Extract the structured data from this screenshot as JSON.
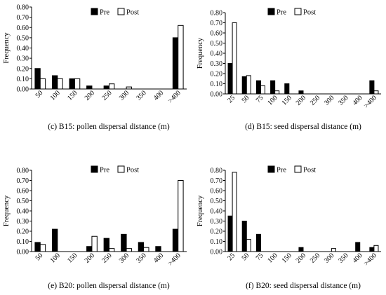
{
  "chart_data": [
    {
      "type": "bar",
      "caption": "(c) B15: pollen dispersal distance (m)",
      "ylabel": "Frequency",
      "ylim": [
        0,
        0.8
      ],
      "yticks": [
        "0.00",
        "0.10",
        "0.20",
        "0.30",
        "0.40",
        "0.50",
        "0.60",
        "0.70",
        "0.80"
      ],
      "categories": [
        "50",
        "100",
        "150",
        "200",
        "250",
        "300",
        "350",
        "400",
        ">400"
      ],
      "legend": "top",
      "series": [
        {
          "name": "Pre",
          "color": "#000000",
          "values": [
            0.2,
            0.13,
            0.1,
            0.03,
            0.03,
            0.0,
            0.0,
            0.0,
            0.5
          ]
        },
        {
          "name": "Post",
          "color": "#ffffff",
          "values": [
            0.1,
            0.1,
            0.1,
            0.0,
            0.05,
            0.02,
            0.0,
            0.0,
            0.62
          ]
        }
      ]
    },
    {
      "type": "bar",
      "caption": "(d) B15: seed dispersal distance (m)",
      "ylabel": "Frequency",
      "ylim": [
        0,
        0.8
      ],
      "yticks": [
        "0.00",
        "0.10",
        "0.20",
        "0.30",
        "0.40",
        "0.50",
        "0.60",
        "0.70",
        "0.80"
      ],
      "categories": [
        "25",
        "50",
        "75",
        "100",
        "150",
        "200",
        "250",
        "300",
        "350",
        "400",
        ">400"
      ],
      "legend": "top",
      "series": [
        {
          "name": "Pre",
          "color": "#000000",
          "values": [
            0.3,
            0.17,
            0.13,
            0.13,
            0.1,
            0.03,
            0.0,
            0.0,
            0.0,
            0.0,
            0.13
          ]
        },
        {
          "name": "Post",
          "color": "#ffffff",
          "values": [
            0.7,
            0.18,
            0.08,
            0.03,
            0.0,
            0.0,
            0.0,
            0.0,
            0.0,
            0.0,
            0.03
          ]
        }
      ]
    },
    {
      "type": "bar",
      "caption": "(e) B20: pollen dispersal distance (m)",
      "ylabel": "Frequency",
      "ylim": [
        0,
        0.8
      ],
      "yticks": [
        "0.00",
        "0.10",
        "0.20",
        "0.30",
        "0.40",
        "0.50",
        "0.60",
        "0.70",
        "0.80"
      ],
      "categories": [
        "50",
        "100",
        "150",
        "200",
        "250",
        "300",
        "350",
        "400",
        ">400"
      ],
      "legend": "top",
      "series": [
        {
          "name": "Pre",
          "color": "#000000",
          "values": [
            0.09,
            0.22,
            0.0,
            0.05,
            0.13,
            0.17,
            0.09,
            0.05,
            0.22
          ]
        },
        {
          "name": "Post",
          "color": "#ffffff",
          "values": [
            0.07,
            0.0,
            0.0,
            0.15,
            0.03,
            0.03,
            0.04,
            0.0,
            0.7
          ]
        }
      ]
    },
    {
      "type": "bar",
      "caption": "(f) B20: seed dispersal distance (m)",
      "ylabel": "Frequency",
      "ylim": [
        0,
        0.8
      ],
      "yticks": [
        "0.00",
        "0.10",
        "0.20",
        "0.30",
        "0.40",
        "0.50",
        "0.60",
        "0.70",
        "0.80"
      ],
      "categories": [
        "25",
        "50",
        "75",
        "100",
        "150",
        "200",
        "250",
        "300",
        "350",
        "400",
        ">400"
      ],
      "legend": "top",
      "series": [
        {
          "name": "Pre",
          "color": "#000000",
          "values": [
            0.35,
            0.3,
            0.17,
            0.0,
            0.0,
            0.04,
            0.0,
            0.0,
            0.0,
            0.09,
            0.04
          ]
        },
        {
          "name": "Post",
          "color": "#ffffff",
          "values": [
            0.78,
            0.12,
            0.0,
            0.0,
            0.0,
            0.0,
            0.0,
            0.03,
            0.0,
            0.0,
            0.06
          ]
        }
      ]
    }
  ]
}
